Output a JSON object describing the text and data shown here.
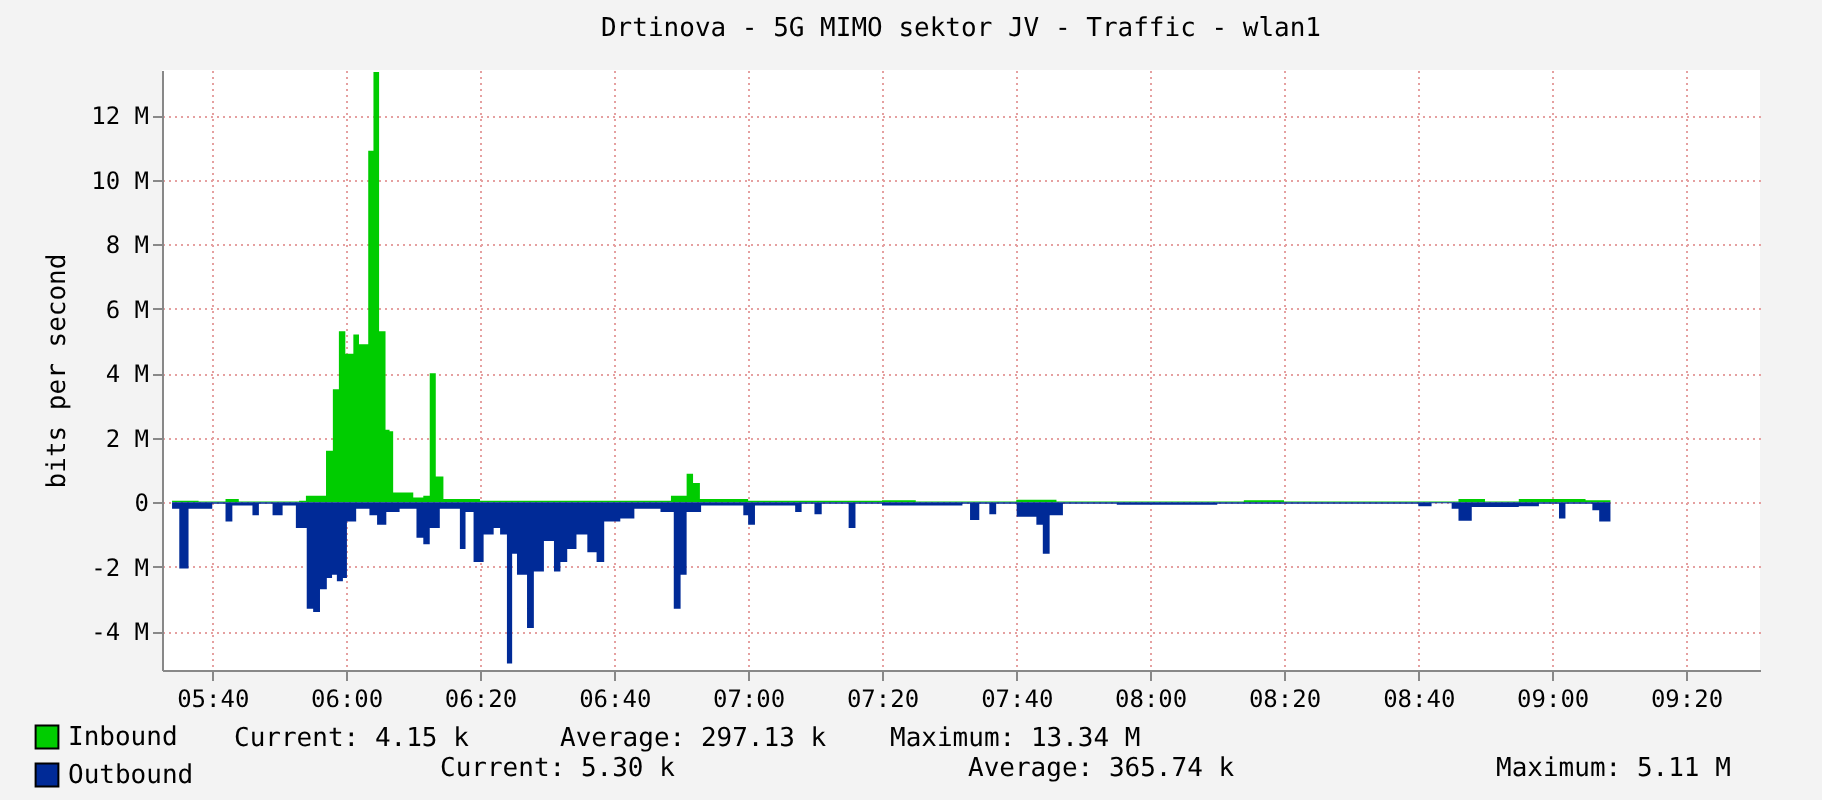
{
  "chart_data": {
    "type": "area",
    "title": "Drtinova - 5G MIMO sektor JV - Traffic - wlan1",
    "ylabel": "bits per second",
    "xlim": [
      5.542,
      9.517
    ],
    "xticks": [
      {
        "value": 5.667,
        "label": "05:40"
      },
      {
        "value": 6,
        "label": "06:00"
      },
      {
        "value": 6.333,
        "label": "06:20"
      },
      {
        "value": 6.667,
        "label": "06:40"
      },
      {
        "value": 7,
        "label": "07:00"
      },
      {
        "value": 7.333,
        "label": "07:20"
      },
      {
        "value": 7.667,
        "label": "07:40"
      },
      {
        "value": 8,
        "label": "08:00"
      },
      {
        "value": 8.333,
        "label": "08:20"
      },
      {
        "value": 8.667,
        "label": "08:40"
      },
      {
        "value": 9,
        "label": "09:00"
      },
      {
        "value": 9.333,
        "label": "09:20"
      }
    ],
    "ylim": [
      -5.2,
      13.4
    ],
    "yticks": [
      {
        "value": -4,
        "label": "-4 M"
      },
      {
        "value": -2,
        "label": "-2 M"
      },
      {
        "value": 0,
        "label": "0"
      },
      {
        "value": 2,
        "label": "2 M"
      },
      {
        "value": 4,
        "label": "4 M"
      },
      {
        "value": 6,
        "label": "6 M"
      },
      {
        "value": 8,
        "label": "8 M"
      },
      {
        "value": 10,
        "label": "10 M"
      },
      {
        "value": 12,
        "label": "12 M"
      }
    ],
    "grid": true,
    "legend": "bottom left",
    "series": [
      {
        "name": "Inbound",
        "color": "#00cc00",
        "x": [
          5.567,
          5.633,
          5.7,
          5.733,
          5.883,
          5.9,
          5.942,
          5.95,
          5.967,
          5.982,
          5.998,
          6.018,
          6.032,
          6.05,
          6.055,
          6.068,
          6.082,
          6.098,
          6.108,
          6.117,
          6.167,
          6.192,
          6.208,
          6.223,
          6.242,
          6.333,
          6.583,
          6.75,
          6.808,
          6.847,
          6.863,
          6.88,
          7.0,
          7.333,
          7.417,
          7.667,
          7.733,
          7.767,
          8.233,
          8.333,
          8.767,
          8.833,
          8.917,
          9.017,
          9.083,
          9.145
        ],
        "values": [
          0.05,
          0.02,
          0.1,
          0.02,
          0.05,
          0.2,
          0.2,
          1.6,
          3.5,
          5.3,
          4.6,
          5.2,
          4.9,
          4.9,
          10.9,
          13.34,
          5.3,
          2.25,
          2.2,
          0.3,
          0.15,
          0.2,
          4.0,
          0.8,
          0.1,
          0.05,
          0.05,
          0.05,
          0.2,
          0.88,
          0.6,
          0.1,
          0.05,
          0.06,
          0.02,
          0.08,
          0.08,
          0.02,
          0.06,
          0.02,
          0.1,
          0.02,
          0.1,
          0.1,
          0.06,
          0.02
        ]
      },
      {
        "name": "Outbound",
        "color": "#002a97",
        "x": [
          5.567,
          5.585,
          5.608,
          5.667,
          5.7,
          5.717,
          5.767,
          5.783,
          5.817,
          5.842,
          5.875,
          5.902,
          5.918,
          5.935,
          5.952,
          5.965,
          5.977,
          5.992,
          6.002,
          6.025,
          6.058,
          6.077,
          6.1,
          6.133,
          6.175,
          6.192,
          6.208,
          6.233,
          6.283,
          6.297,
          6.317,
          6.342,
          6.367,
          6.383,
          6.4,
          6.413,
          6.425,
          6.45,
          6.467,
          6.492,
          6.517,
          6.533,
          6.55,
          6.573,
          6.6,
          6.623,
          6.642,
          6.682,
          6.717,
          6.782,
          6.815,
          6.832,
          6.847,
          6.883,
          6.988,
          7.0,
          7.017,
          7.117,
          7.133,
          7.165,
          7.183,
          7.25,
          7.267,
          7.333,
          7.533,
          7.552,
          7.575,
          7.6,
          7.617,
          7.668,
          7.717,
          7.733,
          7.75,
          7.783,
          7.917,
          8.167,
          8.667,
          8.7,
          8.75,
          8.767,
          8.8,
          8.917,
          8.967,
          9.017,
          9.033,
          9.1,
          9.117,
          9.145
        ],
        "values": [
          -0.2,
          -2.05,
          -0.2,
          -0.05,
          -0.6,
          -0.1,
          -0.4,
          -0.05,
          -0.4,
          -0.1,
          -0.8,
          -3.3,
          -3.4,
          -2.7,
          -2.35,
          -2.25,
          -2.45,
          -2.35,
          -0.6,
          -0.2,
          -0.4,
          -0.7,
          -0.3,
          -0.2,
          -1.1,
          -1.3,
          -0.8,
          -0.2,
          -1.45,
          -0.3,
          -1.85,
          -1.0,
          -0.8,
          -1.0,
          -5.0,
          -1.6,
          -2.25,
          -3.9,
          -2.15,
          -1.2,
          -2.15,
          -1.85,
          -1.45,
          -1.0,
          -1.55,
          -1.85,
          -0.6,
          -0.5,
          -0.2,
          -0.3,
          -3.3,
          -2.25,
          -0.3,
          -0.1,
          -0.4,
          -0.7,
          -0.1,
          -0.3,
          -0.05,
          -0.37,
          -0.05,
          -0.8,
          -0.05,
          -0.1,
          -0.05,
          -0.55,
          -0.05,
          -0.37,
          -0.05,
          -0.45,
          -0.7,
          -1.6,
          -0.4,
          -0.05,
          -0.08,
          -0.05,
          -0.12,
          -0.03,
          -0.2,
          -0.57,
          -0.15,
          -0.12,
          -0.05,
          -0.5,
          -0.05,
          -0.25,
          -0.6,
          -0.2
        ]
      }
    ],
    "annotations": [
      "Current: 4.15 k",
      "Average: 297.13 k",
      "Maximum: 13.34 M",
      "Current: 5.30 k",
      "Average: 365.74 k",
      "Maximum: 5.11 M"
    ]
  }
}
